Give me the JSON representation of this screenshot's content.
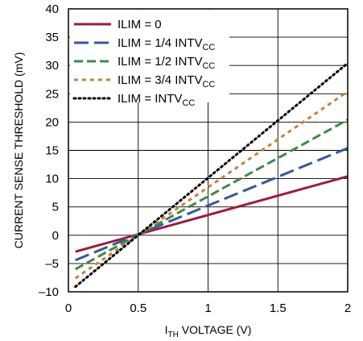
{
  "chart_data": {
    "type": "line",
    "xlabel": {
      "main": "I",
      "sub": "TH",
      "rest": " VOLTAGE (V)"
    },
    "ylabel": "CURRENT SENSE THRESHOLD (mV)",
    "xlim": [
      0,
      2
    ],
    "ylim": [
      -10,
      40
    ],
    "x_ticks": [
      "0",
      "0.5",
      "1",
      "1.5",
      "2"
    ],
    "y_ticks": [
      "–10",
      "–5",
      "0",
      "5",
      "10",
      "15",
      "20",
      "25",
      "30",
      "35",
      "40"
    ],
    "grid": true,
    "legend_position": "top-left",
    "series": [
      {
        "name": "ILIM = 0",
        "label_main": "ILIM = 0",
        "label_sub": "",
        "color": "#9b1c3c",
        "dash": "solid",
        "x": [
          0.05,
          2.0
        ],
        "y": [
          -2.9,
          10.4
        ]
      },
      {
        "name": "ILIM = 1/4 INTVCC",
        "label_main": "ILIM = 1/4 INTV",
        "label_sub": "CC",
        "color": "#3a56a0",
        "dash": "long-dash",
        "x": [
          0.05,
          2.0
        ],
        "y": [
          -4.4,
          15.4
        ]
      },
      {
        "name": "ILIM = 1/2 INTVCC",
        "label_main": "ILIM = 1/2 INTV",
        "label_sub": "CC",
        "color": "#3e8a47",
        "dash": "dash",
        "x": [
          0.05,
          2.0
        ],
        "y": [
          -6.0,
          20.4
        ]
      },
      {
        "name": "ILIM = 3/4 INTVCC",
        "label_main": "ILIM = 3/4 INTV",
        "label_sub": "CC",
        "color": "#c8813c",
        "dash": "short-dash",
        "x": [
          0.05,
          2.0
        ],
        "y": [
          -7.6,
          25.4
        ]
      },
      {
        "name": "ILIM = INTVCC",
        "label_main": "ILIM = INTV",
        "label_sub": "CC",
        "color": "#000000",
        "dash": "dot",
        "x": [
          0.05,
          2.0
        ],
        "y": [
          -9.1,
          30.4
        ]
      }
    ]
  }
}
